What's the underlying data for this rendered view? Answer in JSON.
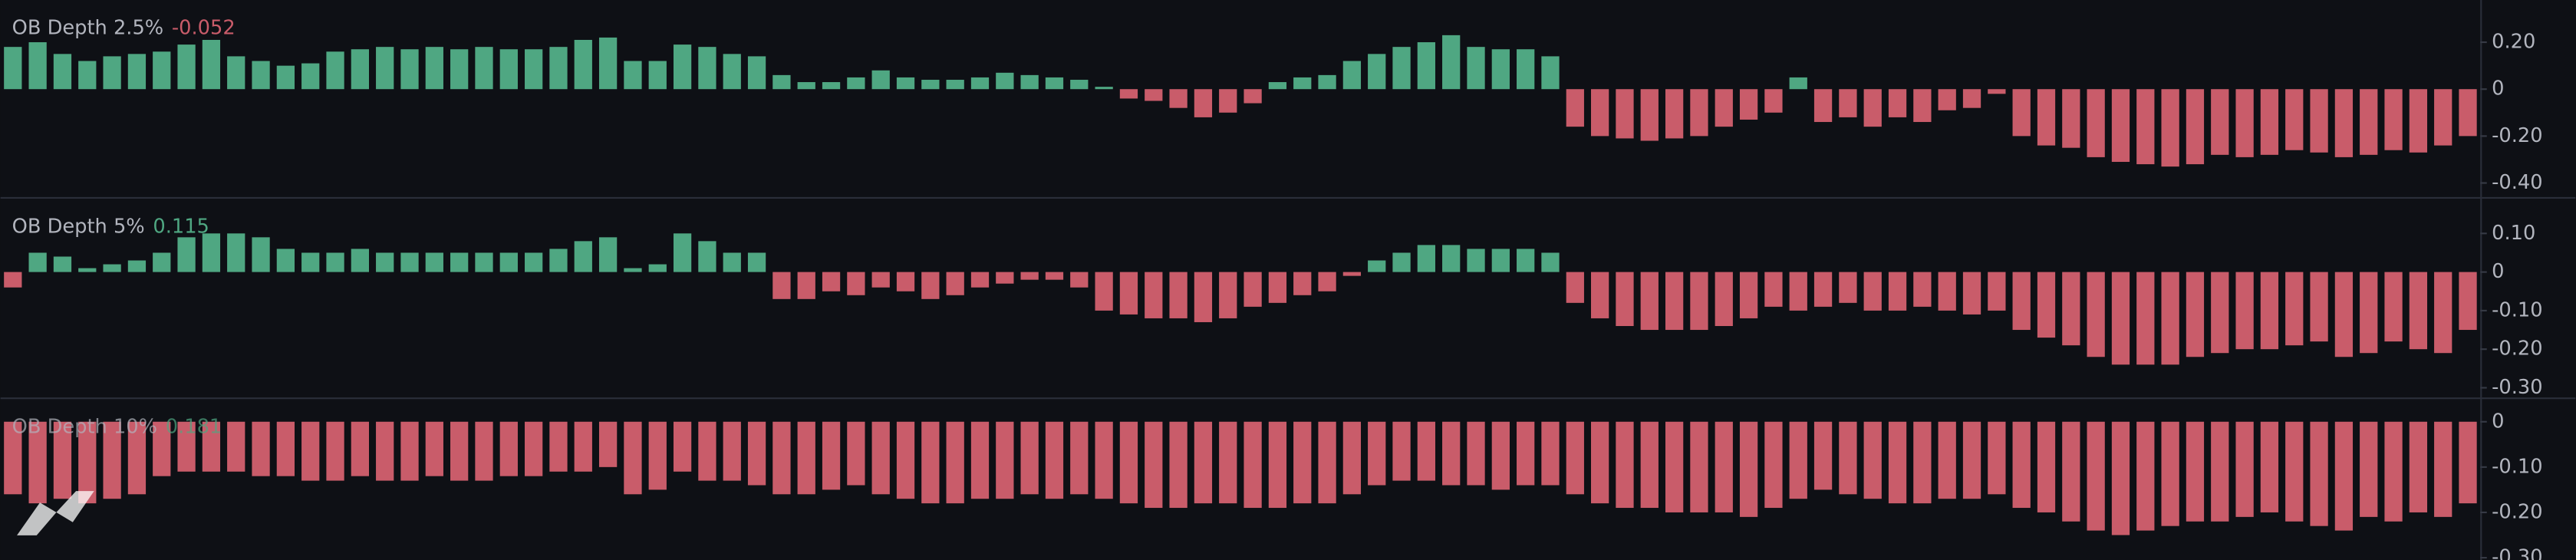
{
  "chart_data": [
    {
      "type": "bar",
      "title": "OB Depth 2.5%",
      "last_value": -0.052,
      "up_color": "#4fa782",
      "down_color": "#c95c6a",
      "ylim": [
        -0.46,
        0.38
      ],
      "yticks": [
        {
          "value": 0.2,
          "label": "0.20"
        },
        0,
        {
          "value": -0.2,
          "label": "-0.20"
        },
        {
          "value": -0.4,
          "label": "-0.40"
        }
      ],
      "values": [
        0.18,
        0.2,
        0.15,
        0.12,
        0.14,
        0.15,
        0.16,
        0.19,
        0.21,
        0.14,
        0.12,
        0.1,
        0.11,
        0.16,
        0.17,
        0.18,
        0.17,
        0.18,
        0.17,
        0.18,
        0.17,
        0.17,
        0.18,
        0.21,
        0.22,
        0.12,
        0.12,
        0.19,
        0.18,
        0.15,
        0.14,
        0.06,
        0.03,
        0.03,
        0.05,
        0.08,
        0.05,
        0.04,
        0.04,
        0.05,
        0.07,
        0.06,
        0.05,
        0.04,
        0.01,
        -0.04,
        -0.05,
        -0.08,
        -0.12,
        -0.1,
        -0.06,
        0.03,
        0.05,
        0.06,
        0.12,
        0.15,
        0.18,
        0.2,
        0.23,
        0.18,
        0.17,
        0.17,
        0.14,
        -0.16,
        -0.2,
        -0.21,
        -0.22,
        -0.21,
        -0.2,
        -0.16,
        -0.13,
        -0.1,
        0.05,
        -0.14,
        -0.12,
        -0.16,
        -0.12,
        -0.14,
        -0.09,
        -0.08,
        -0.02,
        -0.2,
        -0.24,
        -0.25,
        -0.29,
        -0.31,
        -0.32,
        -0.33,
        -0.32,
        -0.28,
        -0.29,
        -0.28,
        -0.26,
        -0.27,
        -0.29,
        -0.28,
        -0.26,
        -0.27,
        -0.24,
        -0.2
      ]
    },
    {
      "type": "bar",
      "title": "OB Depth 5%",
      "last_value": 0.115,
      "up_color": "#4fa782",
      "down_color": "#c95c6a",
      "ylim": [
        -0.325,
        0.19
      ],
      "yticks": [
        {
          "value": 0.1,
          "label": "0.10"
        },
        0,
        {
          "value": -0.1,
          "label": "-0.10"
        },
        {
          "value": -0.2,
          "label": "-0.20"
        },
        {
          "value": -0.3,
          "label": "-0.30"
        }
      ],
      "values": [
        -0.04,
        0.05,
        0.04,
        0.01,
        0.02,
        0.03,
        0.05,
        0.09,
        0.1,
        0.1,
        0.09,
        0.06,
        0.05,
        0.05,
        0.06,
        0.05,
        0.05,
        0.05,
        0.05,
        0.05,
        0.05,
        0.05,
        0.06,
        0.08,
        0.09,
        0.01,
        0.02,
        0.1,
        0.08,
        0.05,
        0.05,
        -0.07,
        -0.07,
        -0.05,
        -0.06,
        -0.04,
        -0.05,
        -0.07,
        -0.06,
        -0.04,
        -0.03,
        -0.02,
        -0.02,
        -0.04,
        -0.1,
        -0.11,
        -0.12,
        -0.12,
        -0.13,
        -0.12,
        -0.09,
        -0.08,
        -0.06,
        -0.05,
        -0.01,
        0.03,
        0.05,
        0.07,
        0.07,
        0.06,
        0.06,
        0.06,
        0.05,
        -0.08,
        -0.12,
        -0.14,
        -0.15,
        -0.15,
        -0.15,
        -0.14,
        -0.12,
        -0.09,
        -0.1,
        -0.09,
        -0.08,
        -0.1,
        -0.1,
        -0.09,
        -0.1,
        -0.11,
        -0.1,
        -0.15,
        -0.17,
        -0.19,
        -0.22,
        -0.24,
        -0.24,
        -0.24,
        -0.22,
        -0.21,
        -0.2,
        -0.2,
        -0.19,
        -0.18,
        -0.22,
        -0.21,
        -0.18,
        -0.2,
        -0.21,
        -0.15
      ]
    },
    {
      "type": "bar",
      "title": "OB Depth 10%",
      "last_value": 0.181,
      "up_color": "#4fa782",
      "down_color": "#c95c6a",
      "ylim": [
        -0.305,
        0.05
      ],
      "yticks": [
        0,
        {
          "value": -0.1,
          "label": "-0.10"
        },
        {
          "value": -0.2,
          "label": "-0.20"
        },
        {
          "value": -0.3,
          "label": "-0.30"
        }
      ],
      "values": [
        -0.16,
        -0.18,
        -0.17,
        -0.18,
        -0.17,
        -0.16,
        -0.12,
        -0.11,
        -0.11,
        -0.11,
        -0.12,
        -0.12,
        -0.13,
        -0.13,
        -0.12,
        -0.13,
        -0.13,
        -0.12,
        -0.13,
        -0.13,
        -0.12,
        -0.12,
        -0.11,
        -0.11,
        -0.1,
        -0.16,
        -0.15,
        -0.11,
        -0.13,
        -0.13,
        -0.14,
        -0.16,
        -0.16,
        -0.15,
        -0.14,
        -0.16,
        -0.17,
        -0.18,
        -0.18,
        -0.17,
        -0.17,
        -0.16,
        -0.17,
        -0.16,
        -0.17,
        -0.18,
        -0.19,
        -0.19,
        -0.18,
        -0.18,
        -0.19,
        -0.19,
        -0.18,
        -0.18,
        -0.16,
        -0.14,
        -0.13,
        -0.13,
        -0.14,
        -0.14,
        -0.15,
        -0.14,
        -0.14,
        -0.16,
        -0.18,
        -0.19,
        -0.19,
        -0.2,
        -0.2,
        -0.2,
        -0.21,
        -0.19,
        -0.17,
        -0.15,
        -0.16,
        -0.17,
        -0.18,
        -0.18,
        -0.17,
        -0.17,
        -0.16,
        -0.19,
        -0.2,
        -0.22,
        -0.24,
        -0.25,
        -0.24,
        -0.23,
        -0.22,
        -0.22,
        -0.21,
        -0.2,
        -0.22,
        -0.23,
        -0.24,
        -0.21,
        -0.22,
        -0.2,
        -0.21,
        -0.18
      ]
    }
  ]
}
